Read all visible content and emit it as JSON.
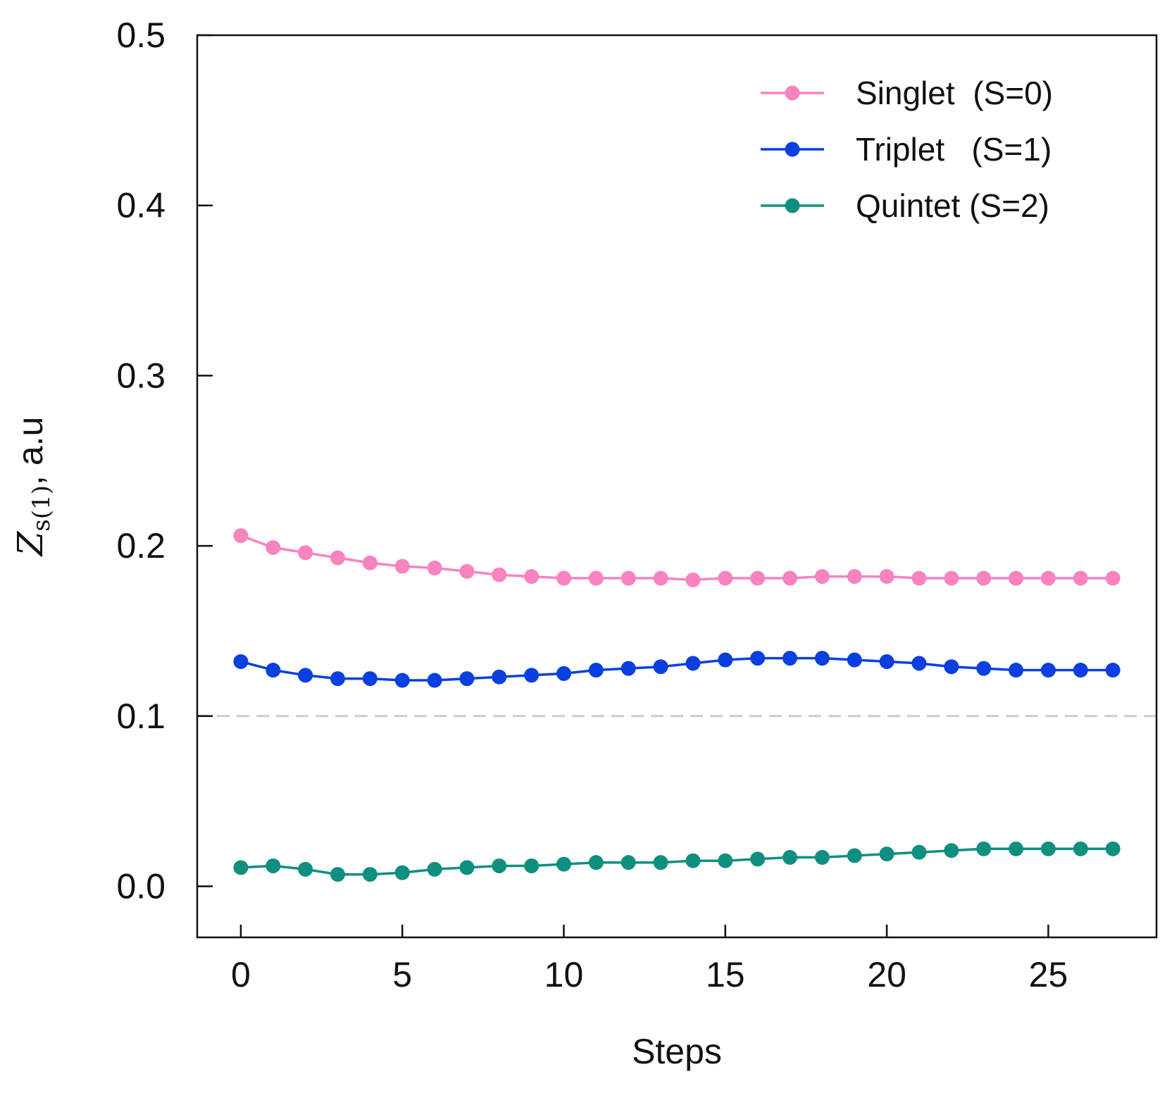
{
  "chart_data": {
    "type": "line",
    "xlabel": "Steps",
    "ylabel": {
      "symbol": "Z",
      "subscript": "s(1)",
      "suffix": ", a.u"
    },
    "xlim": [
      -1.35,
      28.35
    ],
    "ylim": [
      -0.03,
      0.5
    ],
    "xticks": [
      0,
      5,
      10,
      15,
      20,
      25
    ],
    "xtick_labels": [
      "0",
      "5",
      "10",
      "15",
      "20",
      "25"
    ],
    "yticks": [
      0.0,
      0.1,
      0.2,
      0.3,
      0.4,
      0.5
    ],
    "ytick_labels": [
      "0.0",
      "0.1",
      "0.2",
      "0.3",
      "0.4",
      "0.5"
    ],
    "reference_line": {
      "y": 0.1,
      "style": "dashed",
      "color": "#cccccc"
    },
    "legend_position": "top-right",
    "x": [
      0,
      1,
      2,
      3,
      4,
      5,
      6,
      7,
      8,
      9,
      10,
      11,
      12,
      13,
      14,
      15,
      16,
      17,
      18,
      19,
      20,
      21,
      22,
      23,
      24,
      25,
      26,
      27
    ],
    "series": [
      {
        "name": "Singlet  (S=0)",
        "color": "#f783c0",
        "values": [
          0.206,
          0.199,
          0.196,
          0.193,
          0.19,
          0.188,
          0.187,
          0.185,
          0.183,
          0.182,
          0.181,
          0.181,
          0.181,
          0.181,
          0.18,
          0.181,
          0.181,
          0.181,
          0.182,
          0.182,
          0.182,
          0.181,
          0.181,
          0.181,
          0.181,
          0.181,
          0.181,
          0.181
        ]
      },
      {
        "name": "Triplet   (S=1)",
        "color": "#0a3fe0",
        "values": [
          0.132,
          0.127,
          0.124,
          0.122,
          0.122,
          0.121,
          0.121,
          0.122,
          0.123,
          0.124,
          0.125,
          0.127,
          0.128,
          0.129,
          0.131,
          0.133,
          0.134,
          0.134,
          0.134,
          0.133,
          0.132,
          0.131,
          0.129,
          0.128,
          0.127,
          0.127,
          0.127,
          0.127
        ]
      },
      {
        "name": "Quintet (S=2)",
        "color": "#0f8f80",
        "values": [
          0.011,
          0.012,
          0.01,
          0.007,
          0.007,
          0.008,
          0.01,
          0.011,
          0.012,
          0.012,
          0.013,
          0.014,
          0.014,
          0.014,
          0.015,
          0.015,
          0.016,
          0.017,
          0.017,
          0.018,
          0.019,
          0.02,
          0.021,
          0.022,
          0.022,
          0.022,
          0.022,
          0.022
        ]
      }
    ]
  }
}
